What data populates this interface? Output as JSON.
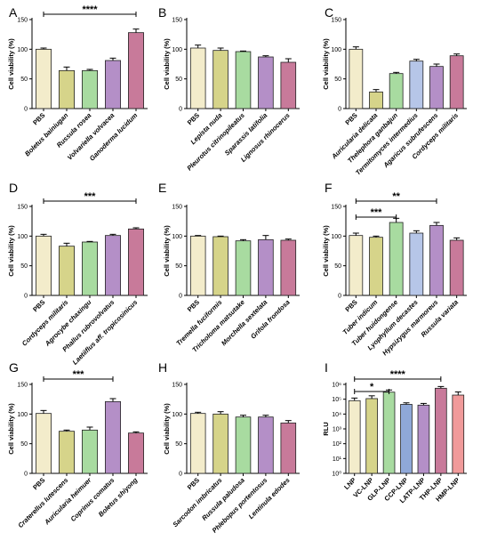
{
  "chart_data": [
    {
      "panel": "A",
      "type": "bar",
      "ylabel": "Cell viability (%)",
      "ylim": [
        0,
        150
      ],
      "yticks": [
        "0",
        "50",
        "100",
        "150"
      ],
      "categories": [
        "PBS",
        "Boletus bainiugan",
        "Russula rosea",
        "Volvariella volvacea",
        "Ganoderma lucidum"
      ],
      "values": [
        100,
        64,
        64,
        81,
        128
      ],
      "errors": [
        2,
        6,
        2,
        4,
        6
      ],
      "colors": [
        "#f3eccb",
        "#d6d48a",
        "#a8dba0",
        "#b48fc7",
        "#c87a9a"
      ],
      "significance": [
        {
          "from": 0,
          "to": 4,
          "label": "****"
        }
      ]
    },
    {
      "panel": "B",
      "type": "bar",
      "ylabel": "Cell viability (%)",
      "ylim": [
        0,
        150
      ],
      "yticks": [
        "0",
        "50",
        "100",
        "150"
      ],
      "categories": [
        "PBS",
        "Lepista nuda",
        "Pleurotus citrinopileatus",
        "Sparassis latifolia",
        "Lignosus rhinocerus"
      ],
      "values": [
        102,
        98,
        96,
        87,
        78
      ],
      "errors": [
        5,
        4,
        1,
        2,
        6
      ],
      "colors": [
        "#f3eccb",
        "#d6d48a",
        "#a8dba0",
        "#b48fc7",
        "#c87a9a"
      ],
      "significance": []
    },
    {
      "panel": "C",
      "type": "bar",
      "ylabel": "Cell viability (%)",
      "ylim": [
        0,
        150
      ],
      "yticks": [
        "0",
        "50",
        "100",
        "150"
      ],
      "categories": [
        "PBS",
        "Auricularia delicata",
        "Thelephora ganbajun",
        "Termitomyces intermedius",
        "Agaricus subrufescens",
        "Cordyceps militaris"
      ],
      "values": [
        100,
        28,
        59,
        80,
        71,
        89
      ],
      "errors": [
        4,
        4,
        2,
        3,
        4,
        3
      ],
      "colors": [
        "#f3eccb",
        "#d6d48a",
        "#a8dba0",
        "#b6c6e8",
        "#b48fc7",
        "#c87a9a"
      ],
      "significance": []
    },
    {
      "panel": "D",
      "type": "bar",
      "ylabel": "Cell viability (%)",
      "ylim": [
        0,
        150
      ],
      "yticks": [
        "0",
        "50",
        "100",
        "150"
      ],
      "categories": [
        "PBS",
        "Cordyceps militaris",
        "Agrocybe chaxingu",
        "Phallus rubrovolvatus",
        "Laetiiflus aff. tropicosinicus"
      ],
      "values": [
        100,
        83,
        90,
        101,
        112
      ],
      "errors": [
        3,
        5,
        1,
        2,
        2
      ],
      "colors": [
        "#f3eccb",
        "#d6d48a",
        "#a8dba0",
        "#b48fc7",
        "#c87a9a"
      ],
      "significance": [
        {
          "from": 0,
          "to": 4,
          "label": "***"
        }
      ]
    },
    {
      "panel": "E",
      "type": "bar",
      "ylabel": "Cell viability (%)",
      "ylim": [
        0,
        150
      ],
      "yticks": [
        "0",
        "50",
        "100",
        "150"
      ],
      "categories": [
        "PBS",
        "Tremella fuciformis",
        "Tricholoma matsutake",
        "Morchella sextelata",
        "Grifola frondosa"
      ],
      "values": [
        100,
        99,
        92,
        94,
        93
      ],
      "errors": [
        1,
        1,
        2,
        7,
        2
      ],
      "colors": [
        "#f3eccb",
        "#d6d48a",
        "#a8dba0",
        "#b48fc7",
        "#c87a9a"
      ],
      "significance": []
    },
    {
      "panel": "F",
      "type": "bar",
      "ylabel": "Cell viability (%)",
      "ylim": [
        0,
        150
      ],
      "yticks": [
        "0",
        "50",
        "100",
        "150"
      ],
      "categories": [
        "PBS",
        "Tuber indicum",
        "Tuber huidongense",
        "Lyophyllum decastes",
        "Hypsizygus marmoreus",
        "Russula variata"
      ],
      "values": [
        101,
        98,
        123,
        105,
        118,
        93
      ],
      "errors": [
        4,
        2,
        7,
        4,
        5,
        4
      ],
      "colors": [
        "#f3eccb",
        "#d6d48a",
        "#a8dba0",
        "#b6c6e8",
        "#b48fc7",
        "#c87a9a"
      ],
      "significance": [
        {
          "from": 0,
          "to": 2,
          "label": "***",
          "level": 0
        },
        {
          "from": 0,
          "to": 4,
          "label": "**",
          "level": 1
        }
      ]
    },
    {
      "panel": "G",
      "type": "bar",
      "ylabel": "Cell viability (%)",
      "ylim": [
        0,
        150
      ],
      "yticks": [
        "0",
        "50",
        "100",
        "150"
      ],
      "categories": [
        "PBS",
        "Craterellus lutescens",
        "Auricularia heimuer",
        "Coprinus comatus",
        "Boletus shiyong"
      ],
      "values": [
        101,
        71,
        73,
        121,
        68
      ],
      "errors": [
        5,
        2,
        5,
        5,
        2
      ],
      "colors": [
        "#f3eccb",
        "#d6d48a",
        "#a8dba0",
        "#b48fc7",
        "#c87a9a"
      ],
      "significance": [
        {
          "from": 0,
          "to": 3,
          "label": "***"
        }
      ]
    },
    {
      "panel": "H",
      "type": "bar",
      "ylabel": "Cell viability (%)",
      "ylim": [
        0,
        150
      ],
      "yticks": [
        "0",
        "50",
        "100",
        "150"
      ],
      "categories": [
        "PBS",
        "Sarcodon imbricatus",
        "Russula paludosa",
        "Phlebopus portentosus",
        "Lentinula edodes"
      ],
      "values": [
        101,
        100,
        95,
        95,
        85
      ],
      "errors": [
        2,
        4,
        3,
        3,
        4
      ],
      "colors": [
        "#f3eccb",
        "#d6d48a",
        "#a8dba0",
        "#b48fc7",
        "#c87a9a"
      ],
      "significance": []
    },
    {
      "panel": "I",
      "type": "bar",
      "ylabel": "RLU",
      "yscale": "log",
      "ylim": [
        1,
        1000000
      ],
      "yticks": [
        "10⁰",
        "10¹",
        "10²",
        "10³",
        "10⁴",
        "10⁵",
        "10⁶"
      ],
      "categories": [
        "LNP",
        "VC-LNP",
        "GLP-LNP",
        "CCP-LNP",
        "LATP-LNP",
        "THP-LNP",
        "HMP-LNP"
      ],
      "values": [
        80000,
        110000,
        300000,
        45000,
        40000,
        550000,
        190000
      ],
      "errors_upper": [
        40000,
        60000,
        120000,
        12000,
        12000,
        170000,
        120000
      ],
      "colors": [
        "#f3eccb",
        "#d6d48a",
        "#a8dba0",
        "#8fa8d8",
        "#b48fc7",
        "#c87a9a",
        "#f09a9a"
      ],
      "significance": [
        {
          "from": 0,
          "to": 2,
          "label": "*",
          "level": 0
        },
        {
          "from": 0,
          "to": 5,
          "label": "****",
          "level": 1
        }
      ]
    }
  ]
}
